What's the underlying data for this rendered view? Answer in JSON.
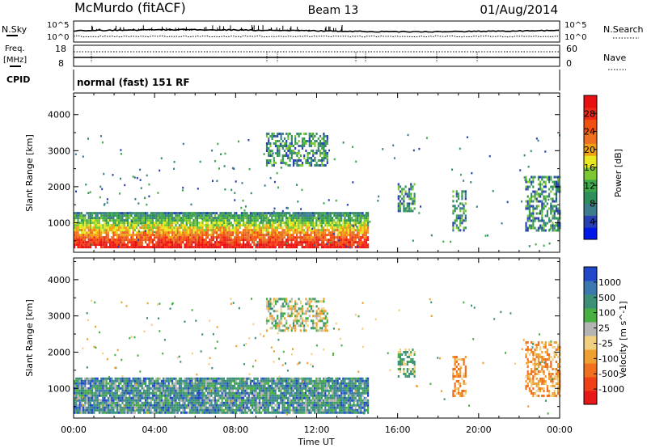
{
  "header": {
    "station": "McMurdo (fitACF)",
    "beam": "Beam 13",
    "date": "01/Aug/2014"
  },
  "top_panel": {
    "nsky_label": "N.Sky",
    "nsearch_label": "N.Search",
    "freq_label": "Freq.",
    "freq_unit": "[MHz]",
    "nave_label": "Nave",
    "cpid_label": "CPID",
    "cpid_value": "normal (fast) 151 RF",
    "noise_ticks": [
      "10^5",
      "10^0"
    ],
    "freq_ticks": [
      "18",
      "8"
    ],
    "nave_ticks": [
      "60",
      "0"
    ]
  },
  "chart_data": [
    {
      "type": "heatmap",
      "title": "",
      "xlabel": "",
      "ylabel": "Slant Range [km]",
      "xlim": [
        0,
        24
      ],
      "ylim": [
        180,
        4600
      ],
      "y_ticks": [
        "1000",
        "2000",
        "3000",
        "4000"
      ],
      "colorbar": {
        "label": "Power [dB]",
        "ticks": [
          "4",
          "8",
          "12",
          "16",
          "20",
          "24",
          "28"
        ],
        "colors": [
          "#0018e8",
          "#2840b4",
          "#3c7c8c",
          "#2e8f5a",
          "#3fa84a",
          "#7cc832",
          "#e8e820",
          "#f0a010",
          "#ee7020",
          "#f05010",
          "#f02818",
          "#e81010"
        ]
      },
      "regions": [
        {
          "t0": 0.0,
          "t1": 14.5,
          "r0": 300,
          "r1": 1300,
          "level": "high"
        },
        {
          "t0": 9.5,
          "t1": 12.5,
          "r0": 2600,
          "r1": 3500,
          "level": "mid"
        },
        {
          "t0": 16.0,
          "t1": 16.8,
          "r0": 1300,
          "r1": 2100,
          "level": "mid"
        },
        {
          "t0": 18.7,
          "t1": 19.4,
          "r0": 800,
          "r1": 1900,
          "level": "mid"
        },
        {
          "t0": 22.3,
          "t1": 24.0,
          "r0": 800,
          "r1": 2300,
          "level": "mid"
        }
      ]
    },
    {
      "type": "heatmap",
      "title": "",
      "xlabel": "Time UT",
      "ylabel": "Slant Range [km]",
      "xlim": [
        0,
        24
      ],
      "ylim": [
        180,
        4600
      ],
      "x_ticks": [
        "00:00",
        "04:00",
        "08:00",
        "12:00",
        "16:00",
        "20:00",
        "00:00"
      ],
      "y_ticks": [
        "1000",
        "2000",
        "3000",
        "4000"
      ],
      "colorbar": {
        "label": "Velocity [m s^-1]",
        "ticks": [
          "1000",
          "500",
          "100",
          "25",
          "-25",
          "-100",
          "-500",
          "-1000"
        ],
        "colors": [
          "#2048c8",
          "#3a78b0",
          "#3c9078",
          "#48b040",
          "#b4b4b4",
          "#f0d080",
          "#f0a030",
          "#f07020",
          "#f04018",
          "#e81818"
        ]
      },
      "regions": [
        {
          "t0": 0.0,
          "t1": 14.5,
          "r0": 300,
          "r1": 1300,
          "level": "low-velocity"
        },
        {
          "t0": 9.5,
          "t1": 12.5,
          "r0": 2600,
          "r1": 3500,
          "level": "mixed"
        },
        {
          "t0": 16.0,
          "t1": 16.8,
          "r0": 1300,
          "r1": 2100,
          "level": "positive"
        },
        {
          "t0": 18.7,
          "t1": 19.4,
          "r0": 800,
          "r1": 1900,
          "level": "negative"
        },
        {
          "t0": 22.3,
          "t1": 24.0,
          "r0": 800,
          "r1": 2300,
          "level": "negative"
        }
      ]
    }
  ]
}
